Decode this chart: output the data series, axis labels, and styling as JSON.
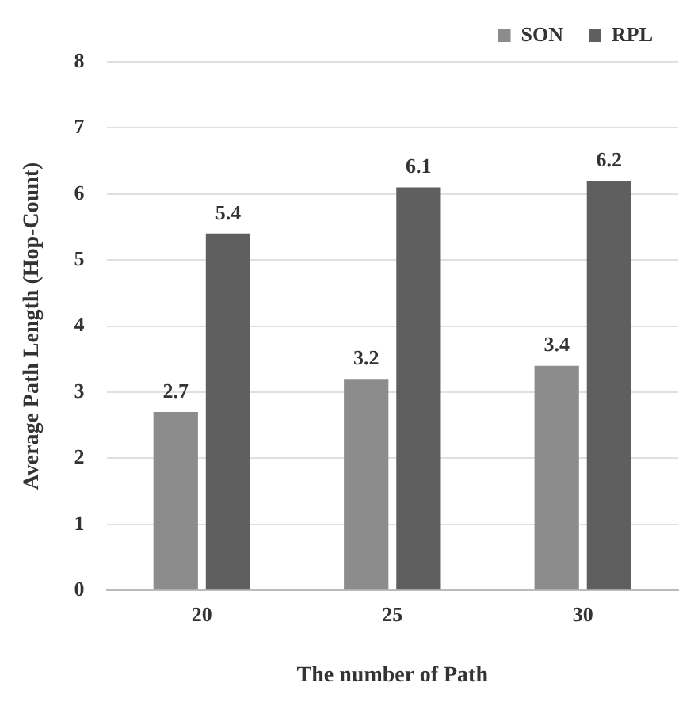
{
  "chart_data": {
    "type": "bar",
    "xlabel": "The number of Path",
    "ylabel": "Average Path Length (Hop-Count)",
    "categories": [
      "20",
      "25",
      "30"
    ],
    "series": [
      {
        "name": "SON",
        "color": "#8c8c8c",
        "values": [
          2.7,
          3.2,
          3.4
        ]
      },
      {
        "name": "RPL",
        "color": "#5f5f5f",
        "values": [
          5.4,
          6.1,
          6.2
        ]
      }
    ],
    "ylim": [
      0,
      8
    ],
    "yticks": [
      0,
      1,
      2,
      3,
      4,
      5,
      6,
      7,
      8
    ],
    "grid": "y",
    "legend": "top right",
    "data_labels": true
  }
}
